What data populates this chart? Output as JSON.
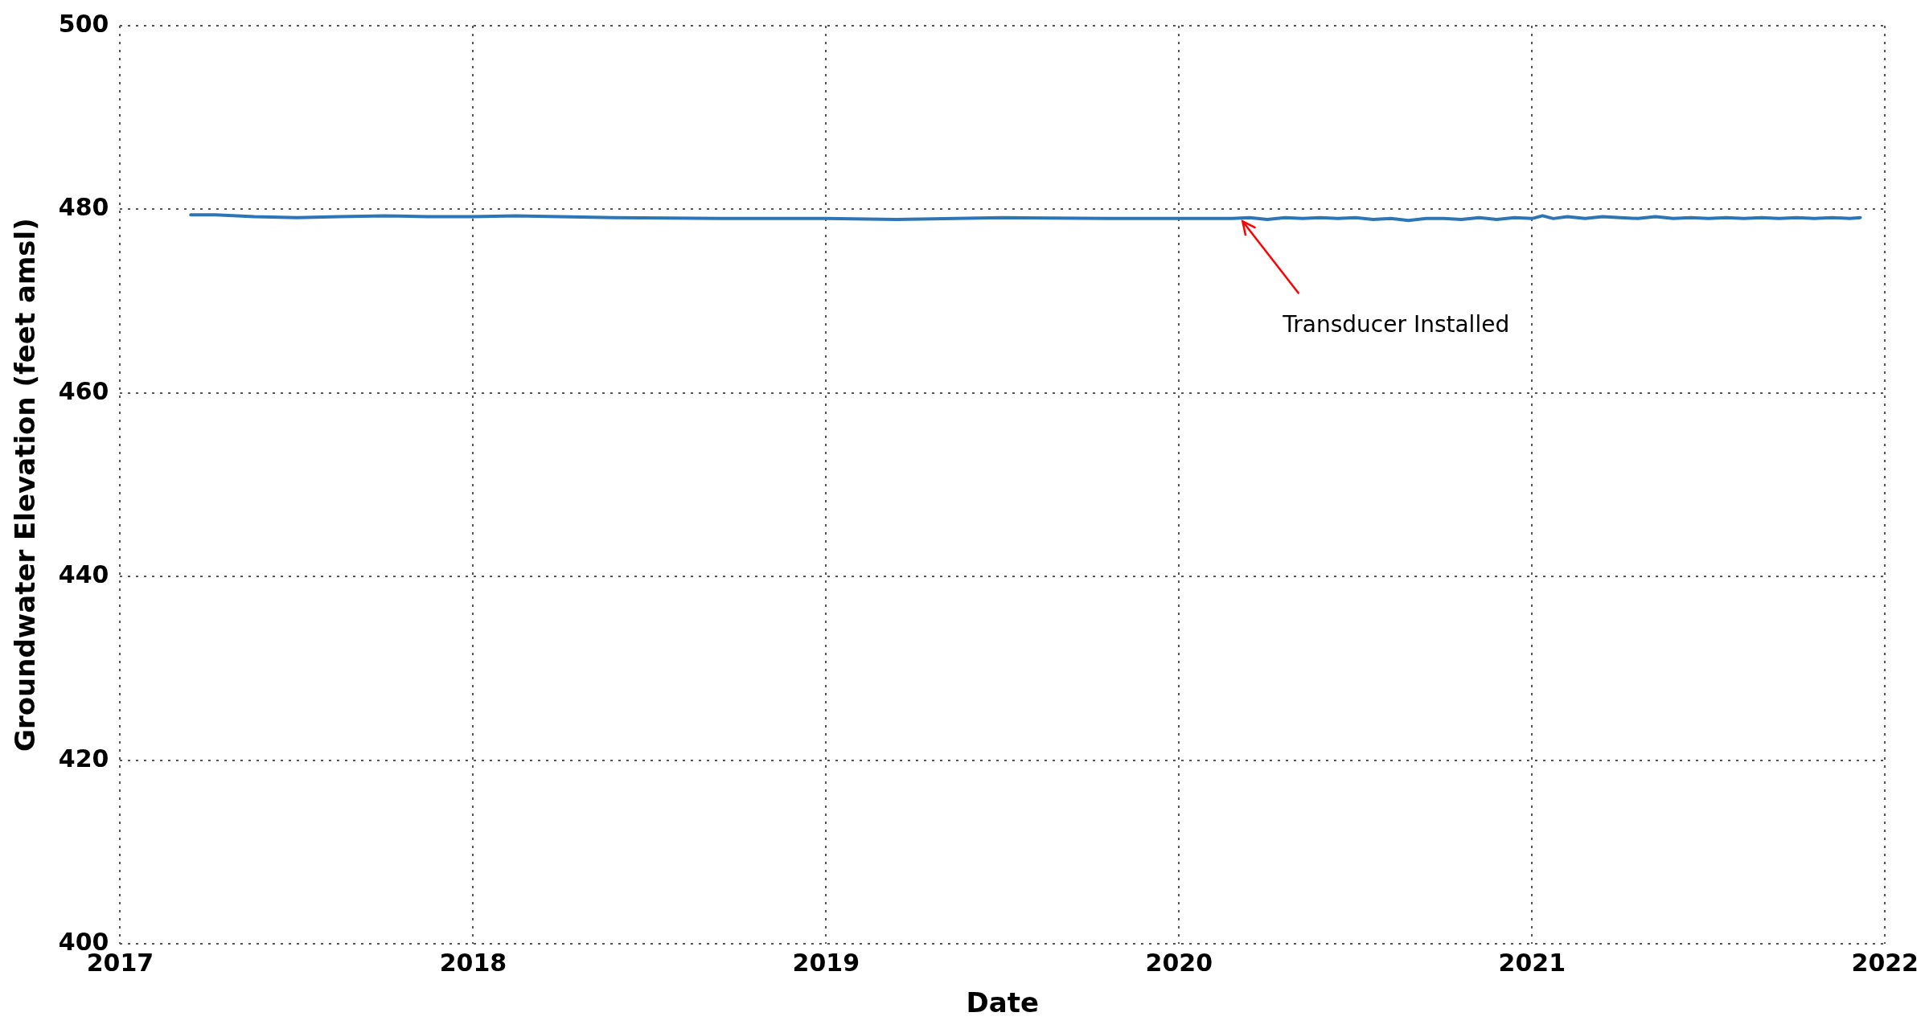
{
  "chart_data": {
    "type": "line",
    "xlabel": "Date",
    "ylabel": "Groundwater Elevation (feet amsl)",
    "xlim": [
      2017,
      2022
    ],
    "xticks": [
      2017,
      2018,
      2019,
      2020,
      2021,
      2022
    ],
    "ylim": [
      400,
      500
    ],
    "yticks": [
      400,
      420,
      440,
      460,
      480,
      500
    ],
    "grid": true,
    "legend": false,
    "marker": "none",
    "line_style": "solid",
    "series": [
      {
        "color": "#2e75b6",
        "x": [
          2017.2,
          2017.27,
          2017.38,
          2017.5,
          2017.62,
          2017.75,
          2017.87,
          2018.0,
          2018.12,
          2018.4,
          2018.7,
          2019.0,
          2019.2,
          2019.5,
          2019.8,
          2020.0,
          2020.15,
          2020.2,
          2020.25,
          2020.3,
          2020.35,
          2020.4,
          2020.45,
          2020.5,
          2020.55,
          2020.6,
          2020.65,
          2020.7,
          2020.75,
          2020.8,
          2020.85,
          2020.9,
          2020.95,
          2021.0,
          2021.03,
          2021.06,
          2021.1,
          2021.15,
          2021.2,
          2021.25,
          2021.3,
          2021.35,
          2021.4,
          2021.45,
          2021.5,
          2021.55,
          2021.6,
          2021.65,
          2021.7,
          2021.75,
          2021.8,
          2021.85,
          2021.9,
          2021.93
        ],
        "values": [
          479.4,
          479.4,
          479.2,
          479.1,
          479.2,
          479.3,
          479.2,
          479.2,
          479.3,
          479.1,
          479.0,
          479.0,
          478.9,
          479.1,
          479.0,
          479.0,
          479.0,
          479.1,
          478.9,
          479.1,
          479.0,
          479.1,
          479.0,
          479.1,
          478.9,
          479.0,
          478.8,
          479.0,
          479.0,
          478.9,
          479.1,
          478.9,
          479.1,
          479.0,
          479.3,
          479.0,
          479.2,
          479.0,
          479.2,
          479.1,
          479.0,
          479.2,
          479.0,
          479.1,
          479.0,
          479.1,
          479.0,
          479.1,
          479.0,
          479.1,
          479.0,
          479.1,
          479.0,
          479.1
        ]
      }
    ],
    "annotations": [
      {
        "text": "Transducer Installed",
        "x": 2020.18,
        "y": 478.7
      }
    ]
  }
}
